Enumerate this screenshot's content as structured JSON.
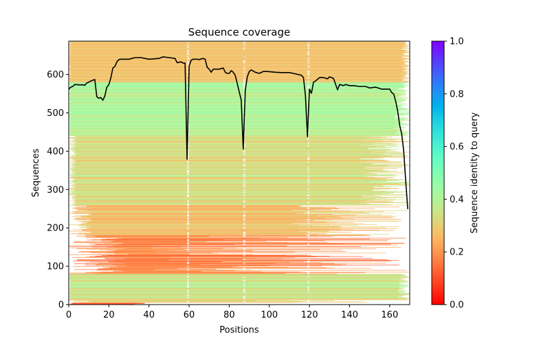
{
  "chart_data": {
    "type": "heatmap",
    "title": "Sequence coverage",
    "xlabel": "Positions",
    "ylabel": "Sequences",
    "xlim": [
      0,
      170
    ],
    "ylim": [
      0,
      687
    ],
    "grid": false,
    "x_ticks": [
      "0",
      "20",
      "40",
      "60",
      "80",
      "100",
      "120",
      "140",
      "160"
    ],
    "y_ticks": [
      "0",
      "100",
      "200",
      "300",
      "400",
      "500",
      "600"
    ],
    "colorbar": {
      "label": "Sequence identity to query",
      "colormap": "rainbow_r",
      "range": [
        0,
        1
      ],
      "ticks": [
        "0.0",
        "0.2",
        "0.4",
        "0.6",
        "0.8",
        "1.0"
      ],
      "placement": "right"
    },
    "coverage_line": {
      "color": "#000000",
      "x": [
        0,
        1,
        2,
        3,
        5,
        7,
        8,
        9,
        10,
        11,
        12,
        13,
        14,
        15,
        16,
        17,
        18,
        19,
        20,
        21,
        22,
        23,
        24,
        25,
        26,
        30,
        33,
        36,
        40,
        45,
        47,
        50,
        53,
        54,
        56,
        57,
        58,
        59,
        60,
        61,
        62,
        64,
        65,
        67,
        68,
        69,
        70,
        71,
        72,
        75,
        77,
        78,
        79,
        80,
        81,
        82,
        83,
        86,
        87,
        88,
        89,
        90,
        91,
        93,
        95,
        97,
        99,
        103,
        106,
        110,
        112,
        116,
        117,
        118,
        119,
        120,
        121,
        122,
        123,
        125,
        127,
        129,
        130,
        132,
        134,
        135,
        137,
        138,
        140,
        142,
        145,
        148,
        150,
        153,
        156,
        158,
        160,
        161,
        162,
        163,
        164,
        165,
        166,
        167,
        168,
        169
      ],
      "y": [
        562,
        567,
        569,
        574,
        573,
        573,
        572,
        578,
        580,
        583,
        585,
        587,
        542,
        538,
        540,
        533,
        544,
        567,
        574,
        592,
        617,
        621,
        633,
        639,
        640,
        640,
        644,
        644,
        640,
        642,
        646,
        644,
        642,
        631,
        633,
        630,
        630,
        379,
        622,
        637,
        640,
        640,
        639,
        642,
        640,
        619,
        614,
        606,
        614,
        614,
        617,
        606,
        603,
        603,
        610,
        606,
        598,
        533,
        406,
        560,
        594,
        608,
        612,
        606,
        603,
        608,
        608,
        606,
        605,
        605,
        603,
        598,
        592,
        544,
        438,
        562,
        551,
        580,
        583,
        592,
        592,
        589,
        594,
        590,
        560,
        574,
        571,
        574,
        571,
        571,
        569,
        569,
        565,
        567,
        562,
        562,
        562,
        553,
        549,
        530,
        504,
        467,
        445,
        401,
        320,
        249
      ]
    },
    "bands": [
      {
        "seq": [
          0,
          5
        ],
        "identity": [
          0.08,
          0.14
        ],
        "start": [
          0,
          2
        ],
        "end": [
          30,
          38
        ]
      },
      {
        "seq": [
          5,
          12
        ],
        "identity": [
          0.26,
          0.34
        ],
        "start": [
          0,
          12
        ],
        "end": [
          90,
          165
        ]
      },
      {
        "seq": [
          12,
          80
        ],
        "identity": [
          0.27,
          0.44
        ],
        "start": [
          0,
          1
        ],
        "end": [
          164,
          170
        ]
      },
      {
        "seq": [
          80,
          180
        ],
        "identity": [
          0.1,
          0.24
        ],
        "start": [
          0,
          30
        ],
        "end": [
          40,
          170
        ]
      },
      {
        "seq": [
          180,
          260
        ],
        "identity": [
          0.2,
          0.34
        ],
        "start": [
          0,
          12
        ],
        "end": [
          110,
          170
        ]
      },
      {
        "seq": [
          260,
          440
        ],
        "identity": [
          0.26,
          0.4
        ],
        "start": [
          0,
          4
        ],
        "end": [
          145,
          170
        ]
      },
      {
        "seq": [
          440,
          580
        ],
        "identity": [
          0.34,
          0.46
        ],
        "start": [
          0,
          1
        ],
        "end": [
          162,
          170
        ]
      },
      {
        "seq": [
          580,
          687
        ],
        "identity": [
          0.25,
          0.3
        ],
        "start": [
          0,
          1
        ],
        "end": [
          166,
          170
        ]
      }
    ],
    "gap_columns": [
      {
        "position": 59,
        "probability": 0.35
      },
      {
        "position": 87,
        "probability": 0.3
      },
      {
        "position": 119,
        "probability": 0.25
      }
    ]
  }
}
